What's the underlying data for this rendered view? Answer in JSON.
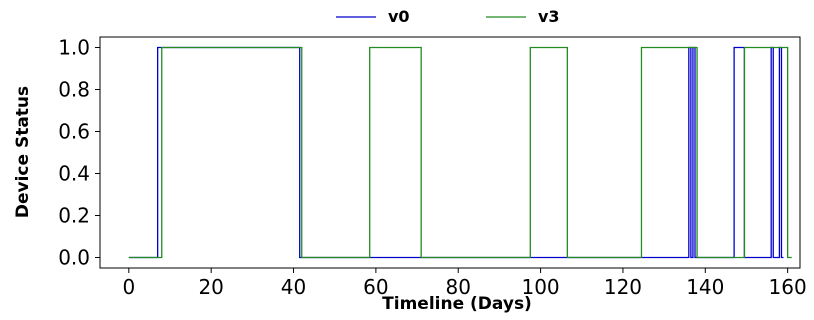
{
  "chart_data": {
    "type": "line",
    "xlabel": "Timeline (Days)",
    "ylabel": "Device Status",
    "xlim": [
      -7,
      163
    ],
    "ylim": [
      -0.05,
      1.05
    ],
    "x_ticks": [
      0,
      20,
      40,
      60,
      80,
      100,
      120,
      140,
      160
    ],
    "y_ticks": [
      0.0,
      0.2,
      0.4,
      0.6,
      0.8,
      1.0
    ],
    "grid": false,
    "legend_position": "top-center",
    "step": "post",
    "series": [
      {
        "name": "v0",
        "color": "#0000cc",
        "points": [
          [
            0,
            0
          ],
          [
            7,
            0
          ],
          [
            7,
            1
          ],
          [
            41.5,
            1
          ],
          [
            41.5,
            0
          ],
          [
            136,
            0
          ],
          [
            136,
            1
          ],
          [
            136.5,
            1
          ],
          [
            136.5,
            0
          ],
          [
            137,
            0
          ],
          [
            137,
            1
          ],
          [
            137.5,
            1
          ],
          [
            137.5,
            0
          ],
          [
            147,
            0
          ],
          [
            147,
            1
          ],
          [
            149.5,
            1
          ],
          [
            149.5,
            0
          ],
          [
            156,
            0
          ],
          [
            156,
            1
          ],
          [
            156.5,
            1
          ],
          [
            156.5,
            0
          ],
          [
            158,
            0
          ],
          [
            158,
            1
          ],
          [
            158.5,
            1
          ],
          [
            158.5,
            0
          ],
          [
            159,
            0
          ]
        ]
      },
      {
        "name": "v3",
        "color": "#228b22",
        "points": [
          [
            0,
            0
          ],
          [
            8,
            0
          ],
          [
            8,
            1
          ],
          [
            42,
            1
          ],
          [
            42,
            0
          ],
          [
            58.5,
            0
          ],
          [
            58.5,
            1
          ],
          [
            71,
            1
          ],
          [
            71,
            0
          ],
          [
            97.5,
            0
          ],
          [
            97.5,
            1
          ],
          [
            106.5,
            1
          ],
          [
            106.5,
            0
          ],
          [
            124.5,
            0
          ],
          [
            124.5,
            1
          ],
          [
            138,
            1
          ],
          [
            138,
            0
          ],
          [
            149.5,
            0
          ],
          [
            149.5,
            1
          ],
          [
            160,
            1
          ],
          [
            160,
            0
          ],
          [
            161,
            0
          ]
        ]
      }
    ]
  }
}
